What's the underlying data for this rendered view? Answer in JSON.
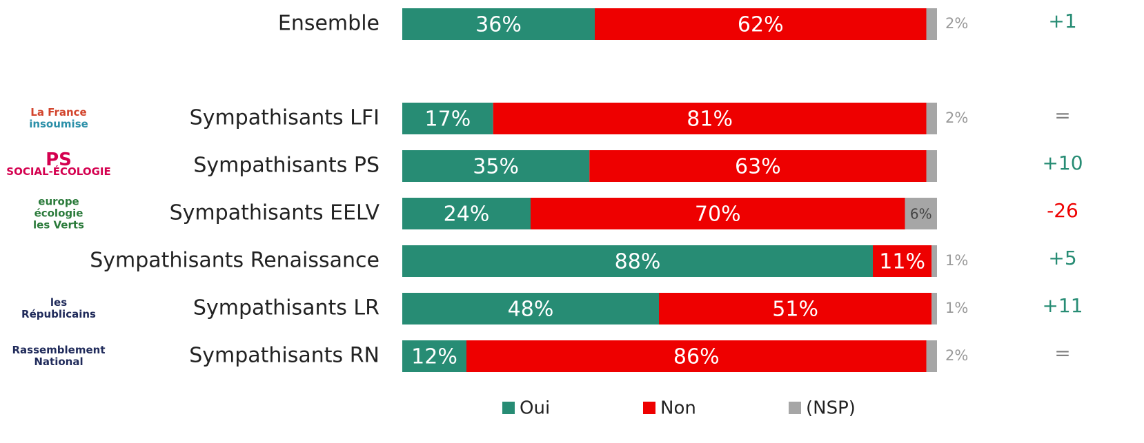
{
  "chart_data": {
    "type": "stacked-barh",
    "categories": [
      "Ensemble",
      "Sympathisants LFI",
      "Sympathisants PS",
      "Sympathisants EELV",
      "Sympathisants Renaissance",
      "Sympathisants LR",
      "Sympathisants RN"
    ],
    "xlim": [
      0,
      100
    ],
    "series": [
      {
        "name": "Oui",
        "color": "#278c74",
        "values": [
          36,
          17,
          35,
          24,
          88,
          48,
          12
        ],
        "value_labels": [
          "36%",
          "17%",
          "35%",
          "24%",
          "88%",
          "48%",
          "12%"
        ]
      },
      {
        "name": "Non",
        "color": "#ee0000",
        "values": [
          62,
          81,
          63,
          70,
          11,
          51,
          86
        ],
        "value_labels": [
          "62%",
          "81%",
          "63%",
          "70%",
          "11%",
          "51%",
          "86%"
        ]
      },
      {
        "name": "(NSP)",
        "color": "#a6a6a6",
        "values": [
          2,
          2,
          2,
          6,
          1,
          1,
          2
        ],
        "value_labels": [
          "2%",
          "2%",
          null,
          "6%",
          "1%",
          "1%",
          "2%"
        ]
      }
    ],
    "changes": [
      "+1",
      "=",
      "+10",
      "-26",
      "+5",
      "+11",
      "="
    ],
    "change_colors": [
      "#278c74",
      "#808080",
      "#278c74",
      "#ee0000",
      "#278c74",
      "#278c74",
      "#808080"
    ],
    "logos": [
      null,
      [
        "La France",
        "insoumise"
      ],
      [
        "PS",
        "SOCIAL-ÉCOLOGIE"
      ],
      [
        "europe",
        "écologie",
        "les Verts"
      ],
      null,
      [
        "les",
        "Républicains"
      ],
      [
        "Rassemblement",
        "National"
      ]
    ],
    "legend": "bottom"
  }
}
